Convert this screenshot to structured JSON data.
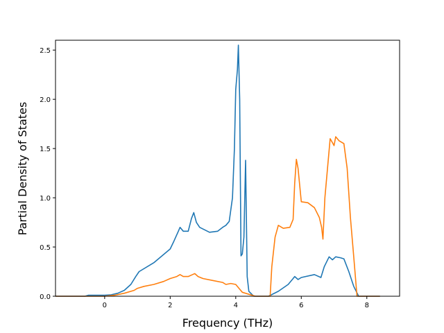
{
  "chart_data": {
    "type": "line",
    "title": "",
    "xlabel": "Frequency (THz)",
    "ylabel": "Partial Density of States",
    "xlim": [
      -1.5,
      9.0
    ],
    "ylim": [
      0.0,
      2.6
    ],
    "xticks": [
      0,
      2,
      4,
      6,
      8
    ],
    "xtick_labels": [
      "0",
      "2",
      "4",
      "6",
      "8"
    ],
    "yticks": [
      0.0,
      0.5,
      1.0,
      1.5,
      2.0,
      2.5
    ],
    "ytick_labels": [
      "0.0",
      "0.5",
      "1.0",
      "1.5",
      "2.0",
      "2.5"
    ],
    "grid": false,
    "legend": "none",
    "series": [
      {
        "color": "#1f77b4",
        "points": [
          [
            -1.5,
            0.0
          ],
          [
            -0.6,
            0.0
          ],
          [
            -0.5,
            0.01
          ],
          [
            0.0,
            0.01
          ],
          [
            0.2,
            0.015
          ],
          [
            0.4,
            0.03
          ],
          [
            0.6,
            0.06
          ],
          [
            0.8,
            0.12
          ],
          [
            0.95,
            0.2
          ],
          [
            1.05,
            0.25
          ],
          [
            1.5,
            0.34
          ],
          [
            2.0,
            0.48
          ],
          [
            2.1,
            0.55
          ],
          [
            2.25,
            0.66
          ],
          [
            2.3,
            0.7
          ],
          [
            2.4,
            0.66
          ],
          [
            2.55,
            0.66
          ],
          [
            2.65,
            0.79
          ],
          [
            2.72,
            0.85
          ],
          [
            2.8,
            0.75
          ],
          [
            2.9,
            0.7
          ],
          [
            3.2,
            0.65
          ],
          [
            3.45,
            0.66
          ],
          [
            3.6,
            0.7
          ],
          [
            3.7,
            0.72
          ],
          [
            3.8,
            0.76
          ],
          [
            3.9,
            1.0
          ],
          [
            3.96,
            1.5
          ],
          [
            4.0,
            2.1
          ],
          [
            4.05,
            2.3
          ],
          [
            4.08,
            2.55
          ],
          [
            4.12,
            2.0
          ],
          [
            4.16,
            0.41
          ],
          [
            4.2,
            0.43
          ],
          [
            4.25,
            0.6
          ],
          [
            4.3,
            1.38
          ],
          [
            4.35,
            0.2
          ],
          [
            4.4,
            0.05
          ],
          [
            4.55,
            0.0
          ],
          [
            5.0,
            0.0
          ],
          [
            5.3,
            0.05
          ],
          [
            5.6,
            0.12
          ],
          [
            5.75,
            0.18
          ],
          [
            5.8,
            0.2
          ],
          [
            5.9,
            0.17
          ],
          [
            6.0,
            0.19
          ],
          [
            6.4,
            0.22
          ],
          [
            6.6,
            0.19
          ],
          [
            6.7,
            0.3
          ],
          [
            6.85,
            0.4
          ],
          [
            6.95,
            0.37
          ],
          [
            7.05,
            0.4
          ],
          [
            7.2,
            0.39
          ],
          [
            7.3,
            0.38
          ],
          [
            7.45,
            0.25
          ],
          [
            7.6,
            0.1
          ],
          [
            7.75,
            0.0
          ],
          [
            8.4,
            0.0
          ]
        ]
      },
      {
        "color": "#ff7f0e",
        "points": [
          [
            -1.5,
            0.0
          ],
          [
            0.0,
            0.0
          ],
          [
            0.3,
            0.01
          ],
          [
            0.6,
            0.03
          ],
          [
            0.9,
            0.06
          ],
          [
            1.0,
            0.08
          ],
          [
            1.2,
            0.1
          ],
          [
            1.5,
            0.12
          ],
          [
            1.8,
            0.15
          ],
          [
            2.0,
            0.18
          ],
          [
            2.2,
            0.2
          ],
          [
            2.3,
            0.22
          ],
          [
            2.4,
            0.2
          ],
          [
            2.55,
            0.2
          ],
          [
            2.68,
            0.22
          ],
          [
            2.75,
            0.23
          ],
          [
            2.85,
            0.2
          ],
          [
            3.0,
            0.18
          ],
          [
            3.3,
            0.16
          ],
          [
            3.6,
            0.14
          ],
          [
            3.7,
            0.12
          ],
          [
            3.85,
            0.13
          ],
          [
            4.0,
            0.12
          ],
          [
            4.1,
            0.08
          ],
          [
            4.2,
            0.04
          ],
          [
            4.4,
            0.02
          ],
          [
            4.6,
            0.0
          ],
          [
            5.05,
            0.0
          ],
          [
            5.1,
            0.3
          ],
          [
            5.2,
            0.6
          ],
          [
            5.3,
            0.72
          ],
          [
            5.45,
            0.69
          ],
          [
            5.65,
            0.7
          ],
          [
            5.75,
            0.78
          ],
          [
            5.8,
            1.15
          ],
          [
            5.85,
            1.39
          ],
          [
            5.9,
            1.3
          ],
          [
            6.0,
            0.96
          ],
          [
            6.2,
            0.95
          ],
          [
            6.4,
            0.9
          ],
          [
            6.55,
            0.8
          ],
          [
            6.62,
            0.7
          ],
          [
            6.66,
            0.58
          ],
          [
            6.72,
            1.0
          ],
          [
            6.8,
            1.3
          ],
          [
            6.88,
            1.6
          ],
          [
            6.95,
            1.56
          ],
          [
            7.0,
            1.53
          ],
          [
            7.05,
            1.62
          ],
          [
            7.15,
            1.58
          ],
          [
            7.3,
            1.55
          ],
          [
            7.4,
            1.3
          ],
          [
            7.5,
            0.8
          ],
          [
            7.6,
            0.4
          ],
          [
            7.7,
            0.0
          ],
          [
            8.4,
            0.0
          ]
        ]
      }
    ]
  }
}
